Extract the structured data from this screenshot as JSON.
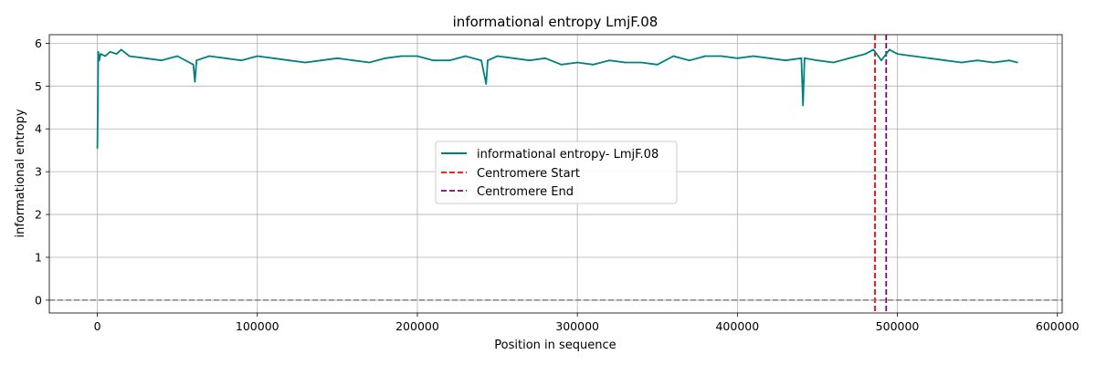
{
  "chart_data": {
    "type": "line",
    "title": "informational entropy LmjF.08",
    "xlabel": "Position in sequence",
    "ylabel": "informational entropy",
    "xlim": [
      -30000,
      603000
    ],
    "ylim": [
      -0.3,
      6.2
    ],
    "x_ticks": [
      0,
      100000,
      200000,
      300000,
      400000,
      500000,
      600000
    ],
    "y_ticks": [
      0,
      1,
      2,
      3,
      4,
      5,
      6
    ],
    "grid": true,
    "legend_position": "center",
    "series": [
      {
        "name": "informational entropy- LmjF.08",
        "color": "#008080",
        "x": [
          0,
          300,
          600,
          1200,
          2000,
          5000,
          8000,
          12000,
          15000,
          20000,
          30000,
          40000,
          50000,
          60000,
          61000,
          62000,
          70000,
          80000,
          90000,
          100000,
          110000,
          120000,
          130000,
          140000,
          150000,
          160000,
          170000,
          180000,
          190000,
          200000,
          210000,
          220000,
          230000,
          240000,
          243000,
          244000,
          250000,
          260000,
          270000,
          280000,
          290000,
          300000,
          310000,
          320000,
          330000,
          340000,
          350000,
          360000,
          370000,
          380000,
          390000,
          400000,
          410000,
          420000,
          430000,
          440000,
          441000,
          442000,
          450000,
          460000,
          470000,
          480000,
          485000,
          490000,
          495000,
          500000,
          510000,
          520000,
          530000,
          540000,
          550000,
          560000,
          570000,
          575000
        ],
        "y": [
          3.55,
          4.5,
          5.8,
          5.6,
          5.75,
          5.7,
          5.8,
          5.75,
          5.85,
          5.7,
          5.65,
          5.6,
          5.7,
          5.5,
          5.1,
          5.6,
          5.7,
          5.65,
          5.6,
          5.7,
          5.65,
          5.6,
          5.55,
          5.6,
          5.65,
          5.6,
          5.55,
          5.65,
          5.7,
          5.7,
          5.6,
          5.6,
          5.7,
          5.6,
          5.05,
          5.6,
          5.7,
          5.65,
          5.6,
          5.65,
          5.5,
          5.55,
          5.5,
          5.6,
          5.55,
          5.55,
          5.5,
          5.7,
          5.6,
          5.7,
          5.7,
          5.65,
          5.7,
          5.65,
          5.6,
          5.65,
          4.55,
          5.65,
          5.6,
          5.55,
          5.65,
          5.75,
          5.85,
          5.6,
          5.85,
          5.75,
          5.7,
          5.65,
          5.6,
          5.55,
          5.6,
          5.55,
          5.6,
          5.55
        ]
      }
    ],
    "reference_lines": [
      {
        "name": "Centromere Start",
        "orientation": "vertical",
        "x": 486000,
        "color": "#ff0000",
        "style": "dashed"
      },
      {
        "name": "Centromere End",
        "orientation": "vertical",
        "x": 493000,
        "color": "#800080",
        "style": "dashed"
      },
      {
        "orientation": "horizontal",
        "y": 0,
        "color": "#808080",
        "style": "dashed"
      }
    ]
  }
}
